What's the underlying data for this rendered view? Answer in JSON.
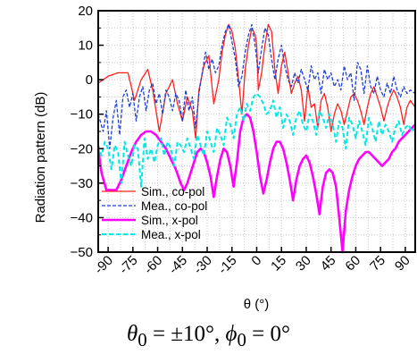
{
  "chart_data": {
    "type": "line",
    "ylabel": "Radiation pattern (dB)",
    "xlabel": "θ (°)",
    "caption": "θ0 = ±10°, ϕ0 = 0°",
    "caption_parts": {
      "theta": "θ",
      "theta_sub": "0",
      "mid": " = ±10°, ",
      "phi": "ϕ",
      "phi_sub": "0",
      "end": " = 0°"
    },
    "xlim": [
      -96,
      96
    ],
    "ylim": [
      -50,
      20
    ],
    "xticks": [
      -90,
      -75,
      -60,
      -45,
      -30,
      -15,
      0,
      15,
      30,
      45,
      60,
      75,
      90
    ],
    "xtick_labels": [
      "-90",
      "-75",
      "-60",
      "-45",
      "-30",
      "-15",
      "0",
      "15",
      "30",
      "45",
      "60",
      "75",
      "90"
    ],
    "yticks": [
      20,
      10,
      0,
      -10,
      -20,
      -30,
      -40,
      -50
    ],
    "ytick_labels": [
      "20",
      "10",
      "0",
      "−10",
      "−20",
      "−30",
      "−40",
      "−50"
    ],
    "grid": true,
    "legend_position": "bottom-left",
    "series": [
      {
        "name": "Sim., co-pol",
        "color": "#ff2020",
        "style": "solid",
        "x": [
          -96,
          -90,
          -84,
          -78,
          -74,
          -70,
          -66,
          -63,
          -59,
          -55,
          -51,
          -48,
          -45,
          -42,
          -39,
          -37,
          -35,
          -32,
          -29,
          -26,
          -23,
          -21,
          -19,
          -17,
          -15,
          -13,
          -11,
          -9,
          -7,
          -5,
          -3,
          -1,
          0,
          1,
          3,
          5,
          7,
          9,
          11,
          13,
          15,
          17,
          19,
          21,
          23,
          25,
          27,
          29,
          31,
          33,
          35,
          37,
          39,
          41,
          43,
          45,
          47,
          49,
          51,
          53,
          55,
          57,
          59,
          61,
          63,
          65,
          67,
          69,
          71,
          73,
          75,
          77,
          79,
          81,
          83,
          85,
          87,
          89,
          91,
          93,
          96
        ],
        "y": [
          -1,
          1,
          2,
          2,
          -6,
          0,
          3,
          -3,
          -15,
          -4,
          0,
          -7,
          -12,
          -5,
          -9,
          -17,
          -3,
          4,
          7,
          -7,
          0,
          8,
          13,
          16,
          14,
          9,
          0,
          -10,
          3,
          10,
          15,
          13,
          10,
          -3,
          2,
          10,
          16,
          14,
          3,
          -4,
          4,
          8,
          2,
          -4,
          -1,
          1,
          -3,
          -12,
          -2,
          -8,
          -7,
          -14,
          -6,
          -4,
          -8,
          -15,
          -10,
          -7,
          -9,
          -13,
          -9,
          -5,
          -4,
          -6,
          -9,
          -13,
          -8,
          -4,
          -2,
          -5,
          -8,
          -12,
          -8,
          -5,
          -3,
          -5,
          -8,
          -13,
          -8,
          -6,
          -8
        ]
      },
      {
        "name": "Mea., co-pol",
        "color": "#2040d0",
        "style": "dashed",
        "x": [
          -96,
          -93,
          -91,
          -89,
          -87,
          -85,
          -83,
          -81,
          -79,
          -77,
          -75,
          -73,
          -71,
          -69,
          -67,
          -65,
          -63,
          -61,
          -59,
          -57,
          -55,
          -53,
          -51,
          -49,
          -47,
          -45,
          -43,
          -41,
          -39,
          -37,
          -35,
          -33,
          -31,
          -29,
          -27,
          -25,
          -23,
          -21,
          -19,
          -17,
          -15,
          -13,
          -11,
          -9,
          -7,
          -5,
          -3,
          -1,
          1,
          3,
          5,
          7,
          9,
          11,
          13,
          15,
          17,
          19,
          21,
          23,
          25,
          27,
          29,
          31,
          33,
          35,
          37,
          39,
          41,
          43,
          45,
          47,
          49,
          51,
          53,
          55,
          57,
          59,
          61,
          63,
          65,
          67,
          69,
          71,
          73,
          75,
          77,
          79,
          81,
          83,
          85,
          87,
          89,
          91,
          93,
          96
        ],
        "y": [
          -10,
          -15,
          -9,
          -20,
          -11,
          -6,
          -16,
          -5,
          -3,
          -8,
          -4,
          -12,
          -5,
          -2,
          -9,
          -3,
          -1,
          -7,
          -4,
          -10,
          -3,
          -5,
          -9,
          -4,
          -6,
          -12,
          -3,
          -9,
          -5,
          -14,
          -4,
          2,
          8,
          3,
          6,
          2,
          4,
          10,
          14,
          16,
          11,
          6,
          -2,
          1,
          8,
          13,
          16,
          10,
          2,
          9,
          15,
          13,
          6,
          0,
          6,
          10,
          4,
          0,
          -2,
          2,
          -1,
          3,
          0,
          -3,
          4,
          0,
          2,
          -4,
          3,
          0,
          2,
          -2,
          0,
          -3,
          4,
          0,
          2,
          -6,
          5,
          3,
          -4,
          4,
          -2,
          -4,
          1,
          -3,
          -5,
          -1,
          -4,
          1,
          -3,
          -5,
          -2,
          -4,
          -3,
          -4
        ]
      },
      {
        "name": "Sim., x-pol",
        "color": "#ff00ff",
        "style": "solid",
        "x": [
          -96,
          -94,
          -91,
          -88,
          -85,
          -82,
          -79,
          -76,
          -73,
          -70,
          -67,
          -64,
          -61,
          -58,
          -55,
          -52,
          -49,
          -46,
          -44,
          -42,
          -40,
          -38,
          -36,
          -34,
          -32,
          -30,
          -28,
          -26,
          -24,
          -22,
          -20,
          -18,
          -16,
          -14,
          -12,
          -10,
          -8,
          -6,
          -4,
          -2,
          0,
          2,
          4,
          6,
          8,
          10,
          12,
          14,
          16,
          18,
          20,
          22,
          24,
          26,
          28,
          30,
          32,
          34,
          36,
          38,
          40,
          42,
          44,
          46,
          48,
          50,
          52,
          54,
          56,
          58,
          60,
          62,
          64,
          66,
          68,
          70,
          72,
          74,
          76,
          78,
          80,
          82,
          84,
          86,
          88,
          90,
          92,
          94,
          96
        ],
        "y": [
          -20,
          -27,
          -32,
          -32,
          -32,
          -29,
          -25,
          -21,
          -18,
          -16,
          -15,
          -15,
          -16,
          -18,
          -20,
          -23,
          -26,
          -30,
          -32,
          -30,
          -27,
          -24,
          -21,
          -20,
          -21,
          -24,
          -28,
          -34,
          -28,
          -23,
          -20,
          -21,
          -25,
          -31,
          -24,
          -15,
          -11,
          -10,
          -11,
          -15,
          -21,
          -28,
          -33,
          -29,
          -24,
          -20,
          -18,
          -18,
          -20,
          -24,
          -29,
          -35,
          -29,
          -25,
          -23,
          -22,
          -24,
          -28,
          -33,
          -39,
          -31,
          -27,
          -26,
          -27,
          -31,
          -40,
          -50,
          -38,
          -32,
          -28,
          -25,
          -23,
          -22,
          -21,
          -21,
          -22,
          -23,
          -24,
          -25,
          -24,
          -23,
          -21,
          -20,
          -18,
          -17,
          -16,
          -15,
          -14,
          -13
        ]
      },
      {
        "name": "Mea., x-pol",
        "color": "#00e8e8",
        "style": "dashed",
        "x": [
          -96,
          -94,
          -92,
          -90,
          -88,
          -86,
          -84,
          -82,
          -80,
          -78,
          -76,
          -74,
          -72,
          -70,
          -68,
          -66,
          -64,
          -62,
          -60,
          -58,
          -56,
          -54,
          -52,
          -50,
          -48,
          -46,
          -44,
          -42,
          -40,
          -38,
          -36,
          -34,
          -32,
          -30,
          -28,
          -26,
          -24,
          -22,
          -20,
          -18,
          -16,
          -14,
          -12,
          -10,
          -8,
          -6,
          -4,
          -2,
          0,
          2,
          4,
          6,
          8,
          10,
          12,
          14,
          16,
          18,
          20,
          22,
          24,
          26,
          28,
          30,
          32,
          34,
          36,
          38,
          40,
          42,
          44,
          46,
          48,
          50,
          52,
          54,
          56,
          58,
          60,
          62,
          64,
          66,
          68,
          70,
          72,
          74,
          76,
          78,
          80,
          82,
          84,
          86,
          88,
          90,
          92,
          94,
          96
        ],
        "y": [
          -19,
          -22,
          -18,
          -20,
          -26,
          -19,
          -21,
          -30,
          -18,
          -22,
          -25,
          -19,
          -20,
          -31,
          -17,
          -23,
          -20,
          -24,
          -19,
          -17,
          -22,
          -18,
          -20,
          -25,
          -18,
          -19,
          -21,
          -17,
          -20,
          -23,
          -16,
          -19,
          -22,
          -15,
          -18,
          -21,
          -14,
          -16,
          -19,
          -11,
          -13,
          -17,
          -10,
          -8,
          -12,
          -7,
          -9,
          -5,
          -4,
          -5,
          -7,
          -10,
          -9,
          -6,
          -11,
          -8,
          -14,
          -10,
          -12,
          -16,
          -11,
          -9,
          -13,
          -15,
          -10,
          -12,
          -16,
          -9,
          -11,
          -14,
          -10,
          -13,
          -18,
          -12,
          -14,
          -20,
          -11,
          -13,
          -17,
          -12,
          -15,
          -19,
          -11,
          -14,
          -18,
          -12,
          -16,
          -13,
          -15,
          -18,
          -14,
          -12,
          -16,
          -14,
          -13,
          -15,
          -14
        ]
      }
    ]
  }
}
